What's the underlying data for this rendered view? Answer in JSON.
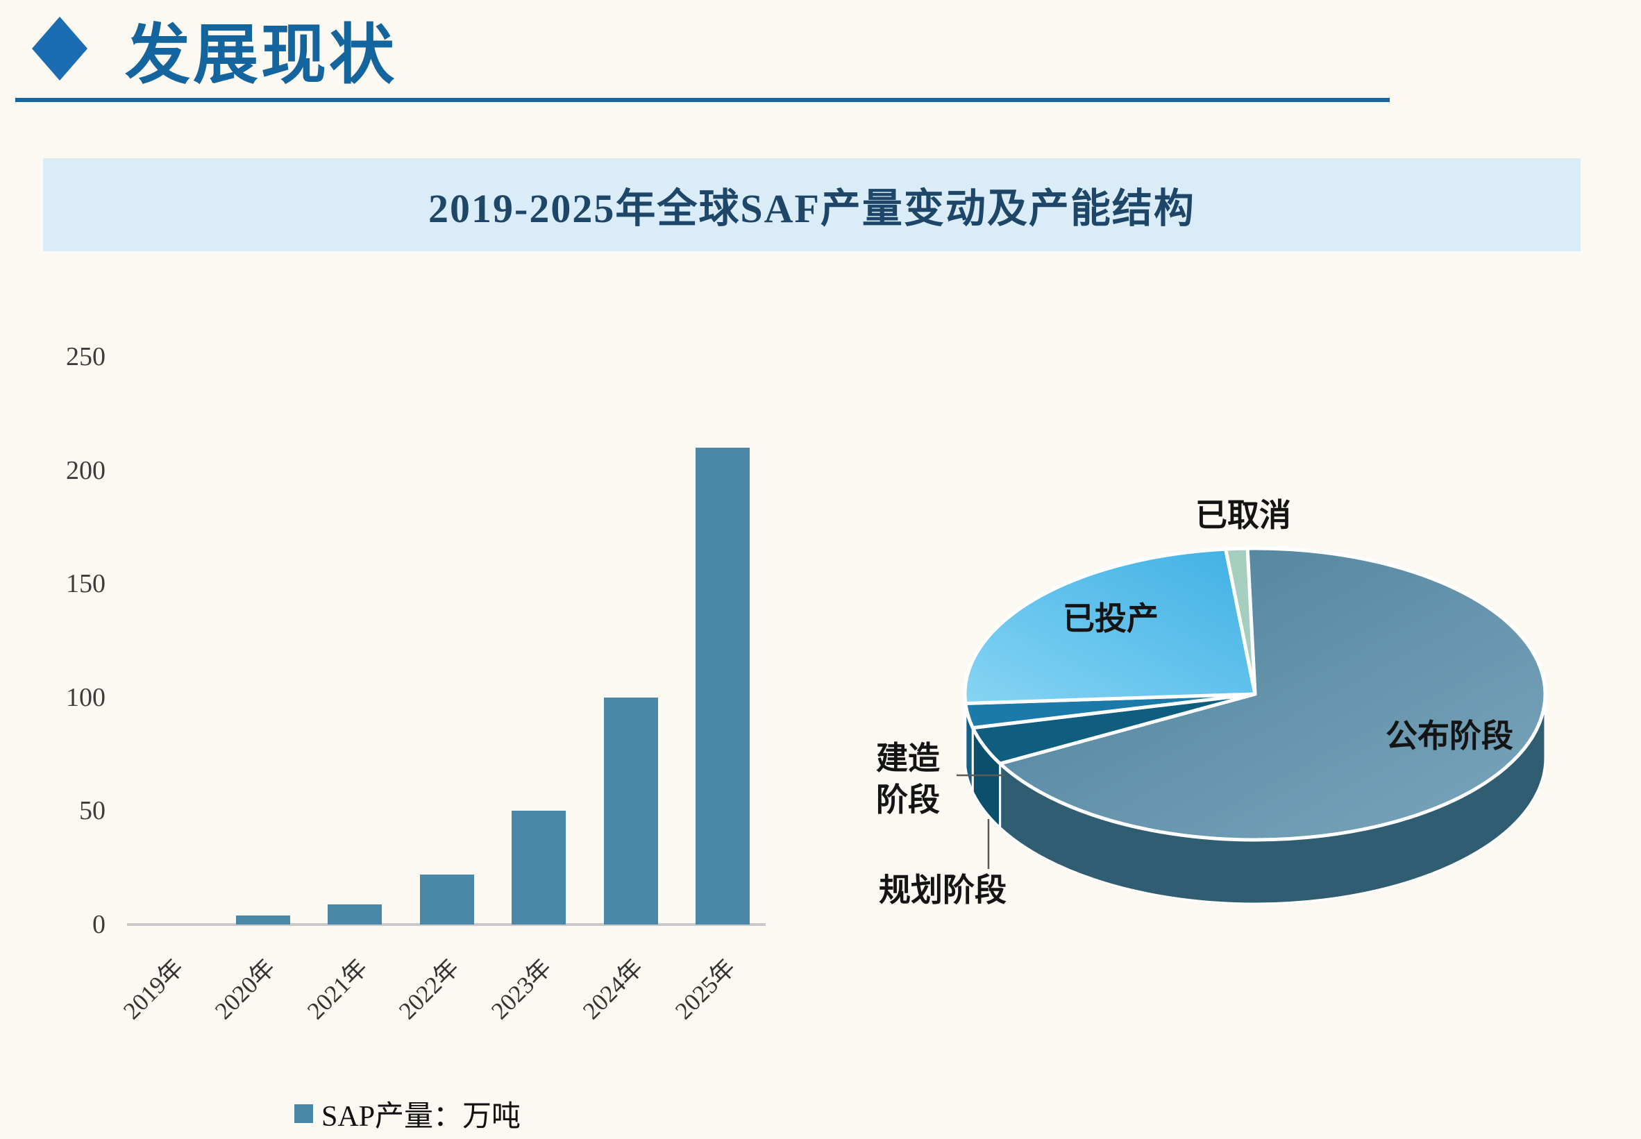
{
  "page": {
    "background": "#fbf9f2"
  },
  "header": {
    "title": "发展现状",
    "accent_color": "#1a6db3",
    "underline_color": "#1565a0"
  },
  "banner": {
    "title": "2019-2025年全球SAF产量变动及产能结构",
    "background": "#d9ecf7",
    "text_color": "#1d4668"
  },
  "chart_data": [
    {
      "type": "bar",
      "title": "2019-2025年全球SAF产量变动及产能结构",
      "categories": [
        "2019年",
        "2020年",
        "2021年",
        "2022年",
        "2023年",
        "2024年",
        "2025年"
      ],
      "values": [
        0,
        4,
        9,
        22,
        50,
        100,
        210
      ],
      "series_name": "SAP产量：万吨",
      "ylabel": "",
      "xlabel": "",
      "ylim": [
        0,
        250
      ],
      "yticks": [
        0,
        50,
        100,
        150,
        200,
        250
      ],
      "bar_color": "#4a87a9",
      "axis_color": "#c9c9c9",
      "grid": false,
      "legend_position": "bottom"
    },
    {
      "type": "pie",
      "effect": "3d",
      "start_angle_deg": 91.5,
      "slices": [
        {
          "label": "公布阶段",
          "pct": 67.5,
          "color": "#4d7f9a",
          "color2": "#7aa6bc",
          "rim": "#315d73"
        },
        {
          "label": "规划阶段",
          "pct": 4.2,
          "color": "#0f5d7f",
          "rim": "#0c4f6d"
        },
        {
          "label": "建造阶段",
          "label_display": "建造\n阶段",
          "pct": 2.7,
          "color": "#1b7aa9",
          "rim": "#14618b"
        },
        {
          "label": "已投产",
          "pct": 24.4,
          "color": "#3fb0e5",
          "color2": "#86d4f3",
          "grad_dir": "left",
          "rim": "#2f8cb8"
        },
        {
          "label": "已取消",
          "pct": 1.2,
          "color": "#a6cebf",
          "rim": "#7fae9e"
        }
      ],
      "legend_position": "none"
    }
  ]
}
